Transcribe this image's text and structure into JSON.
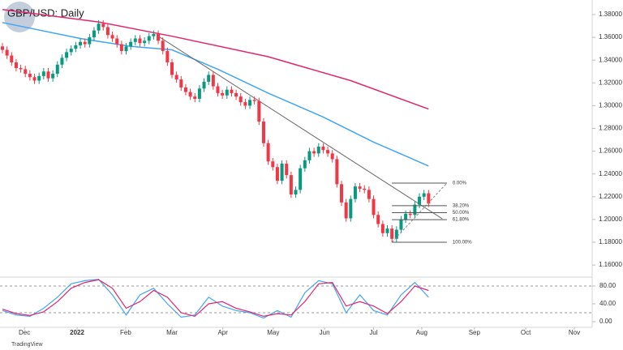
{
  "chart_data": [
    {
      "type": "candlestick",
      "title": "GBP/USD: Daily",
      "footer": "TradingView",
      "up_color": "#089981",
      "down_color": "#f23645",
      "xlim": [
        -0.53,
        128.7
      ],
      "ylim": [
        1.1494,
        1.3928
      ],
      "xticks": [
        {
          "value": 4.8,
          "label": "Dec"
        },
        {
          "value": 16.3,
          "label": "2022"
        },
        {
          "value": 26.9,
          "label": "Feb"
        },
        {
          "value": 37,
          "label": "Mar"
        },
        {
          "value": 48.1,
          "label": "Apr"
        },
        {
          "value": 59.1,
          "label": "May"
        },
        {
          "value": 70.3,
          "label": "Jun"
        },
        {
          "value": 81,
          "label": "Jul"
        },
        {
          "value": 91.5,
          "label": "Aug"
        },
        {
          "value": 103,
          "label": "Sep"
        },
        {
          "value": 114.2,
          "label": "Oct"
        },
        {
          "value": 124.8,
          "label": "Nov"
        }
      ],
      "yticks": [
        {
          "value": 1.16,
          "label": "1.16000"
        },
        {
          "value": 1.18,
          "label": "1.18000"
        },
        {
          "value": 1.2,
          "label": "1.20000"
        },
        {
          "value": 1.22,
          "label": "1.22000"
        },
        {
          "value": 1.24,
          "label": "1.24000"
        },
        {
          "value": 1.26,
          "label": "1.26000"
        },
        {
          "value": 1.28,
          "label": "1.28000"
        },
        {
          "value": 1.3,
          "label": "1.30000"
        },
        {
          "value": 1.32,
          "label": "1.32000"
        },
        {
          "value": 1.34,
          "label": "1.34000"
        },
        {
          "value": 1.36,
          "label": "1.36000"
        },
        {
          "value": 1.38,
          "label": "1.38000"
        }
      ],
      "open": [
        1.352,
        1.349,
        1.344,
        1.338,
        1.333,
        1.332,
        1.328,
        1.325,
        1.322,
        1.326,
        1.33,
        1.324,
        1.328,
        1.336,
        1.342,
        1.347,
        1.35,
        1.353,
        1.356,
        1.354,
        1.36,
        1.366,
        1.372,
        1.369,
        1.362,
        1.359,
        1.354,
        1.348,
        1.352,
        1.356,
        1.359,
        1.355,
        1.357,
        1.361,
        1.363,
        1.357,
        1.348,
        1.338,
        1.327,
        1.323,
        1.316,
        1.312,
        1.308,
        1.306,
        1.315,
        1.321,
        1.327,
        1.317,
        1.311,
        1.309,
        1.314,
        1.311,
        1.308,
        1.303,
        1.3,
        1.305,
        1.304,
        1.286,
        1.267,
        1.251,
        1.246,
        1.234,
        1.249,
        1.239,
        1.222,
        1.226,
        1.245,
        1.252,
        1.26,
        1.258,
        1.264,
        1.261,
        1.258,
        1.253,
        1.231,
        1.215,
        1.201,
        1.218,
        1.229,
        1.227,
        1.226,
        1.218,
        1.204,
        1.196,
        1.188,
        1.192,
        1.183,
        1.191,
        1.2,
        1.205,
        1.204,
        1.213,
        1.22,
        1.223
      ],
      "high": [
        1.355,
        1.352,
        1.347,
        1.341,
        1.336,
        1.335,
        1.331,
        1.328,
        1.329,
        1.333,
        1.333,
        1.331,
        1.339,
        1.345,
        1.35,
        1.353,
        1.356,
        1.359,
        1.359,
        1.363,
        1.369,
        1.375,
        1.375,
        1.372,
        1.365,
        1.362,
        1.357,
        1.355,
        1.359,
        1.362,
        1.362,
        1.36,
        1.364,
        1.366,
        1.366,
        1.36,
        1.351,
        1.341,
        1.33,
        1.326,
        1.319,
        1.315,
        1.311,
        1.318,
        1.324,
        1.33,
        1.33,
        1.32,
        1.314,
        1.317,
        1.317,
        1.314,
        1.311,
        1.306,
        1.308,
        1.308,
        1.307,
        1.289,
        1.27,
        1.254,
        1.249,
        1.252,
        1.252,
        1.242,
        1.229,
        1.248,
        1.255,
        1.263,
        1.263,
        1.267,
        1.267,
        1.264,
        1.261,
        1.256,
        1.234,
        1.218,
        1.221,
        1.232,
        1.232,
        1.23,
        1.229,
        1.221,
        1.207,
        1.199,
        1.195,
        1.195,
        1.194,
        1.203,
        1.208,
        1.208,
        1.216,
        1.223,
        1.226,
        1.226
      ],
      "low": [
        1.346,
        1.341,
        1.335,
        1.33,
        1.329,
        1.325,
        1.322,
        1.319,
        1.319,
        1.323,
        1.321,
        1.321,
        1.325,
        1.333,
        1.339,
        1.344,
        1.347,
        1.35,
        1.351,
        1.351,
        1.357,
        1.363,
        1.366,
        1.359,
        1.356,
        1.351,
        1.345,
        1.345,
        1.349,
        1.353,
        1.352,
        1.352,
        1.354,
        1.358,
        1.354,
        1.345,
        1.335,
        1.324,
        1.32,
        1.313,
        1.309,
        1.305,
        1.303,
        1.303,
        1.312,
        1.318,
        1.314,
        1.308,
        1.306,
        1.306,
        1.308,
        1.305,
        1.3,
        1.297,
        1.297,
        1.301,
        1.283,
        1.264,
        1.248,
        1.243,
        1.231,
        1.231,
        1.236,
        1.219,
        1.219,
        1.223,
        1.242,
        1.249,
        1.255,
        1.255,
        1.258,
        1.255,
        1.25,
        1.228,
        1.212,
        1.198,
        1.198,
        1.215,
        1.224,
        1.223,
        1.215,
        1.201,
        1.193,
        1.185,
        1.185,
        1.18,
        1.18,
        1.188,
        1.197,
        1.201,
        1.201,
        1.21,
        1.217,
        1.211
      ],
      "close": [
        1.349,
        1.344,
        1.338,
        1.333,
        1.332,
        1.328,
        1.325,
        1.322,
        1.326,
        1.33,
        1.324,
        1.328,
        1.336,
        1.342,
        1.347,
        1.35,
        1.353,
        1.356,
        1.354,
        1.36,
        1.366,
        1.372,
        1.369,
        1.362,
        1.359,
        1.354,
        1.348,
        1.352,
        1.356,
        1.359,
        1.355,
        1.357,
        1.361,
        1.363,
        1.357,
        1.348,
        1.338,
        1.327,
        1.323,
        1.316,
        1.312,
        1.308,
        1.306,
        1.315,
        1.321,
        1.327,
        1.317,
        1.311,
        1.309,
        1.314,
        1.311,
        1.308,
        1.303,
        1.3,
        1.305,
        1.304,
        1.286,
        1.267,
        1.251,
        1.246,
        1.234,
        1.249,
        1.239,
        1.222,
        1.226,
        1.245,
        1.252,
        1.26,
        1.258,
        1.264,
        1.261,
        1.258,
        1.253,
        1.231,
        1.215,
        1.201,
        1.218,
        1.229,
        1.227,
        1.226,
        1.218,
        1.204,
        1.196,
        1.188,
        1.192,
        1.183,
        1.191,
        1.2,
        1.205,
        1.204,
        1.213,
        1.22,
        1.223,
        1.214
      ],
      "lines": [
        {
          "color": "#e0266f",
          "x": [
            0,
            21,
            37,
            58,
            76,
            93
          ],
          "values": [
            1.3845,
            1.3735,
            1.361,
            1.343,
            1.322,
            1.297
          ]
        },
        {
          "color": "#42a5f5",
          "x": [
            0,
            17,
            28,
            37,
            47,
            58,
            70,
            81,
            93
          ],
          "values": [
            1.373,
            1.359,
            1.352,
            1.349,
            1.332,
            1.311,
            1.29,
            1.268,
            1.247
          ]
        },
        {
          "color": "#6b6b6b",
          "x": [
            34,
            96
          ],
          "values": [
            1.361,
            1.2006
          ]
        }
      ],
      "fib": {
        "high": 1.232,
        "low": 1.18,
        "x": [
          85,
          97
        ],
        "levels": [
          {
            "value": 0,
            "label": "0.00%"
          },
          {
            "value": 38.2,
            "label": "38.20%"
          },
          {
            "value": 50,
            "label": "50.00%"
          },
          {
            "value": 61.8,
            "label": "61.80%"
          },
          {
            "value": 100,
            "label": "100.00%"
          }
        ]
      }
    },
    {
      "type": "line",
      "xlim": [
        -0.53,
        128.7
      ],
      "ylim": [
        -12.7,
        100
      ],
      "yticks": [
        {
          "value": 0,
          "label": "0.00"
        },
        {
          "value": 40,
          "label": "40.00"
        },
        {
          "value": 80,
          "label": "80.00"
        }
      ],
      "bands": [
        80,
        20
      ],
      "x": [
        0,
        3,
        6,
        9,
        12,
        15,
        18,
        21,
        24,
        27,
        30,
        33,
        36,
        39,
        42,
        45,
        48,
        51,
        54,
        57,
        60,
        63,
        66,
        69,
        72,
        75,
        78,
        81,
        84,
        87,
        90,
        93
      ],
      "series": [
        {
          "color": "#42a5f5",
          "values": [
            25,
            15,
            12,
            30,
            55,
            85,
            92,
            95,
            60,
            15,
            60,
            75,
            40,
            10,
            15,
            55,
            35,
            25,
            20,
            8,
            25,
            10,
            65,
            92,
            85,
            20,
            60,
            25,
            15,
            60,
            88,
            55
          ]
        },
        {
          "color": "#e0266f",
          "values": [
            28,
            18,
            14,
            22,
            45,
            75,
            88,
            94,
            75,
            30,
            45,
            70,
            55,
            20,
            12,
            40,
            45,
            30,
            22,
            12,
            18,
            15,
            45,
            85,
            88,
            35,
            45,
            35,
            18,
            45,
            80,
            70
          ]
        }
      ]
    }
  ]
}
